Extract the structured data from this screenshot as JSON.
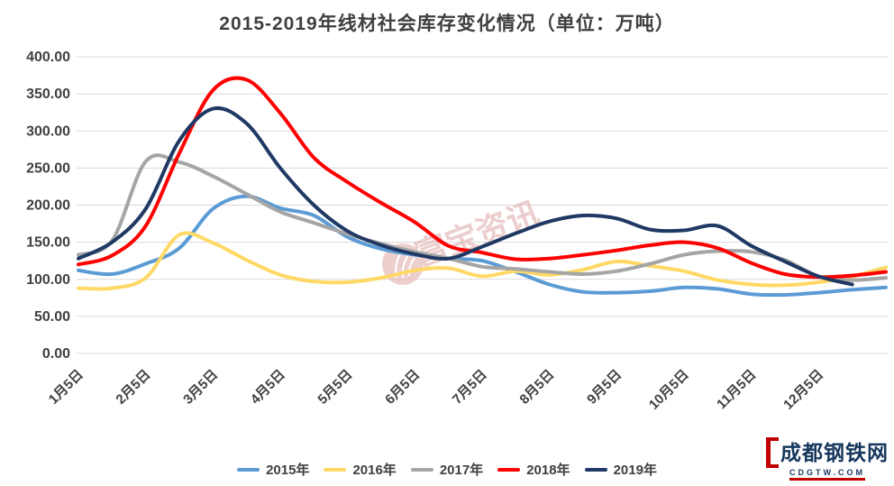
{
  "title": "2015-2019年线材社会库存变化情况（单位：万吨）",
  "watermark": {
    "text": "富宝资讯",
    "color": "#e0b3b1",
    "icon": "fubao-flame-badge"
  },
  "logo": {
    "text": "成都钢铁网",
    "subtext": "CDGTW.COM",
    "navy": "#17375e",
    "red": "#c00000"
  },
  "chart_data": {
    "type": "line",
    "title": "2015-2019年线材社会库存变化情况（单位：万吨）",
    "unit": "万吨",
    "grid": "horizontal",
    "legend_position": "bottom",
    "ylim": [
      0,
      400
    ],
    "y_ticks": [
      0,
      50,
      100,
      150,
      200,
      250,
      300,
      350,
      400
    ],
    "y_tick_labels": [
      "0.00",
      "50.00",
      "100.00",
      "150.00",
      "200.00",
      "250.00",
      "300.00",
      "350.00",
      "400.00"
    ],
    "x_note": "25 semi-monthly sample points, Jan 5 through late Dec; axis labels on the 5th of each month",
    "points": 25,
    "x_tick_indices": [
      0,
      2,
      4,
      6,
      8,
      10,
      12,
      14,
      16,
      18,
      20,
      22
    ],
    "x_tick_labels": [
      "1月5日",
      "2月5日",
      "3月5日",
      "4月5日",
      "5月5日",
      "6月5日",
      "7月5日",
      "8月5日",
      "9月5日",
      "10月5日",
      "11月5日",
      "12月5日"
    ],
    "series": [
      {
        "name": "2015年",
        "color": "#5B9BD5",
        "values": [
          112,
          107,
          121,
          142,
          195,
          212,
          196,
          186,
          157,
          141,
          133,
          128,
          125,
          110,
          93,
          83,
          82,
          84,
          89,
          87,
          80,
          79,
          82,
          86,
          89
        ]
      },
      {
        "name": "2016年",
        "color": "#FFD966",
        "values": [
          88,
          88,
          102,
          160,
          149,
          126,
          106,
          97,
          96,
          102,
          112,
          115,
          104,
          111,
          106,
          113,
          124,
          118,
          111,
          99,
          93,
          92,
          96,
          104,
          116
        ]
      },
      {
        "name": "2017年",
        "color": "#A5A5A5",
        "values": [
          133,
          152,
          259,
          258,
          239,
          215,
          191,
          176,
          161,
          148,
          137,
          128,
          117,
          114,
          110,
          107,
          111,
          121,
          133,
          138,
          137,
          126,
          104,
          99,
          102
        ]
      },
      {
        "name": "2018年",
        "color": "#FF0000",
        "values": [
          120,
          132,
          172,
          270,
          355,
          369,
          324,
          264,
          231,
          203,
          177,
          145,
          136,
          127,
          128,
          133,
          139,
          146,
          150,
          142,
          122,
          107,
          103,
          105,
          110
        ]
      },
      {
        "name": "2019年",
        "color": "#1F3864",
        "values": [
          128,
          150,
          195,
          287,
          330,
          310,
          250,
          200,
          165,
          146,
          134,
          128,
          144,
          162,
          178,
          186,
          182,
          167,
          166,
          172,
          145,
          124,
          104,
          93
        ]
      }
    ],
    "grid_color": "#d9d9d9",
    "label_color": "#404040"
  }
}
